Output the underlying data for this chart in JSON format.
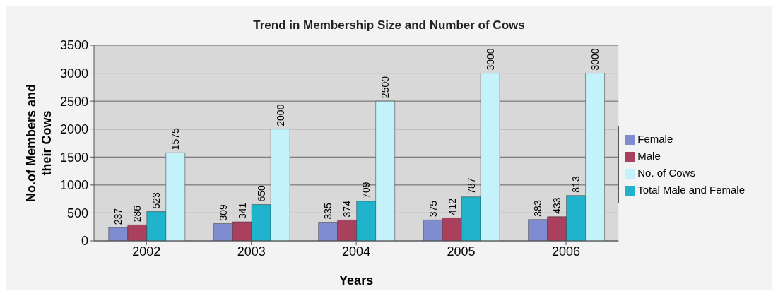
{
  "chart_data": {
    "type": "bar",
    "title": "Trend in Membership Size and Number of Cows",
    "xlabel": "Years",
    "ylabel": "No.of Members and their Cows",
    "categories": [
      "2002",
      "2003",
      "2004",
      "2005",
      "2006"
    ],
    "series": [
      {
        "name": "Female",
        "color": "#7f8cd0",
        "values": [
          237,
          309,
          335,
          375,
          383
        ]
      },
      {
        "name": "Male",
        "color": "#a8405e",
        "values": [
          286,
          341,
          374,
          412,
          433
        ]
      },
      {
        "name": "Total Male and Female",
        "color": "#1fb4cc",
        "values": [
          523,
          650,
          709,
          787,
          813
        ]
      },
      {
        "name": "No. of Cows",
        "color": "#c4f2fa",
        "values": [
          1575,
          2000,
          2500,
          3000,
          3000
        ]
      }
    ],
    "ylim": [
      0,
      3500
    ],
    "yticks": [
      0,
      500,
      1000,
      1500,
      2000,
      2500,
      3000,
      3500
    ],
    "grid": "y",
    "legend": "right",
    "data_labels": true
  }
}
